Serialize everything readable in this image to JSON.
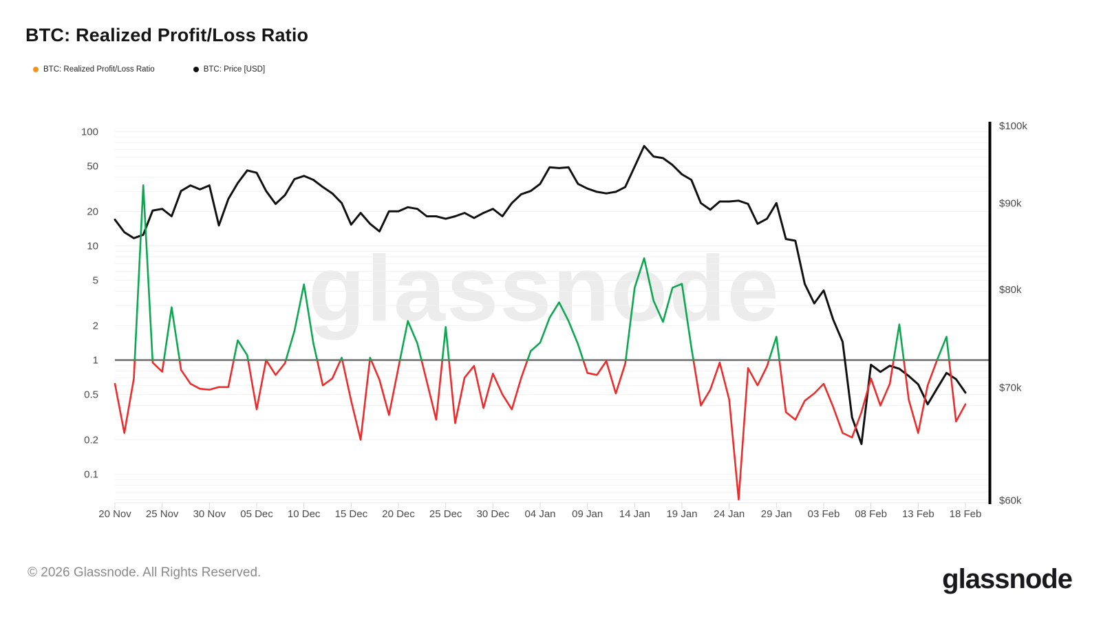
{
  "header": {
    "title": "BTC: Realized Profit/Loss Ratio"
  },
  "legend": [
    {
      "label": "BTC: Realized Profit/Loss Ratio",
      "color": "#f7931a"
    },
    {
      "label": "BTC: Price [USD]",
      "color": "#111111"
    }
  ],
  "watermark": "glassnode",
  "footer": {
    "copyright": "© 2026 Glassnode. All Rights Reserved.",
    "logo_text": "glassnode"
  },
  "chart_data": {
    "type": "line",
    "title": "BTC: Realized Profit/Loss Ratio",
    "grid": true,
    "legend_position": "top-left",
    "x_tick_labels": [
      "20 Nov",
      "25 Nov",
      "30 Nov",
      "05 Dec",
      "10 Dec",
      "15 Dec",
      "20 Dec",
      "25 Dec",
      "30 Dec",
      "04 Jan",
      "09 Jan",
      "14 Jan",
      "19 Jan",
      "24 Jan",
      "29 Jan",
      "03 Feb",
      "08 Feb",
      "13 Feb",
      "18 Feb"
    ],
    "x_days_span": 90,
    "left_axis": {
      "scale": "log",
      "tick_values": [
        100,
        50,
        20,
        10,
        5,
        2,
        1,
        0.5,
        0.2,
        0.1
      ],
      "range_approx": [
        0.05,
        130
      ],
      "baseline_value": 1,
      "baseline_color": "#6b6b6b"
    },
    "right_axis": {
      "scale": "log",
      "tick_labels": [
        "$100k",
        "$90k",
        "$80k",
        "$70k",
        "$60k"
      ],
      "tick_values_k": [
        100,
        90,
        80,
        70,
        60
      ],
      "unit": "USD thousands"
    },
    "series": [
      {
        "name": "BTC: Realized Profit/Loss Ratio",
        "axis": "left",
        "color_above_1": "#0ca750",
        "color_below_1": "#ee2b2b",
        "values": [
          0.62,
          0.23,
          0.69,
          34,
          0.95,
          0.79,
          2.9,
          0.82,
          0.62,
          0.56,
          0.55,
          0.58,
          0.58,
          1.49,
          1.1,
          0.37,
          1.0,
          0.74,
          0.94,
          1.8,
          4.6,
          1.4,
          0.6,
          0.69,
          1.05,
          0.44,
          0.2,
          1.05,
          0.67,
          0.33,
          0.86,
          2.2,
          1.4,
          0.65,
          0.3,
          1.95,
          0.28,
          0.7,
          0.89,
          0.38,
          0.76,
          0.5,
          0.37,
          0.7,
          1.2,
          1.42,
          2.35,
          3.2,
          2.2,
          1.38,
          0.77,
          0.74,
          0.98,
          0.51,
          0.93,
          4.3,
          7.8,
          3.3,
          2.16,
          4.3,
          4.65,
          1.29,
          0.4,
          0.55,
          0.95,
          0.45,
          0.06,
          0.85,
          0.6,
          0.88,
          1.6,
          0.35,
          0.3,
          0.44,
          0.51,
          0.62,
          0.39,
          0.23,
          0.21,
          0.35,
          0.69,
          0.4,
          0.62,
          2.05,
          0.45,
          0.23,
          0.6,
          1.0,
          1.6,
          0.29,
          0.41
        ]
      },
      {
        "name": "BTC: Price [USD]",
        "axis": "right",
        "color": "#111111",
        "values_usd_thousands": [
          88.0,
          86.5,
          85.8,
          86.2,
          89.1,
          89.3,
          88.4,
          91.5,
          92.2,
          91.7,
          92.2,
          87.3,
          90.5,
          92.5,
          94.1,
          93.8,
          91.5,
          89.9,
          91.0,
          93.0,
          93.4,
          92.9,
          92.0,
          91.2,
          90.0,
          87.4,
          88.8,
          87.5,
          86.6,
          89.0,
          89.0,
          89.5,
          89.3,
          88.4,
          88.4,
          88.1,
          88.4,
          88.8,
          88.2,
          88.8,
          89.3,
          88.4,
          90.0,
          91.1,
          91.5,
          92.4,
          94.5,
          94.4,
          94.5,
          92.4,
          91.8,
          91.4,
          91.2,
          91.4,
          92.0,
          94.6,
          97.3,
          95.9,
          95.7,
          94.8,
          93.6,
          92.9,
          90.0,
          89.2,
          90.2,
          90.2,
          90.3,
          89.9,
          87.5,
          88.1,
          90.0,
          85.7,
          85.5,
          80.6,
          78.5,
          79.9,
          76.8,
          74.5,
          67.2,
          64.8,
          72.2,
          71.5,
          72.1,
          71.8,
          71.1,
          70.3,
          68.4,
          69.9,
          71.4,
          70.8,
          69.5
        ]
      }
    ]
  }
}
